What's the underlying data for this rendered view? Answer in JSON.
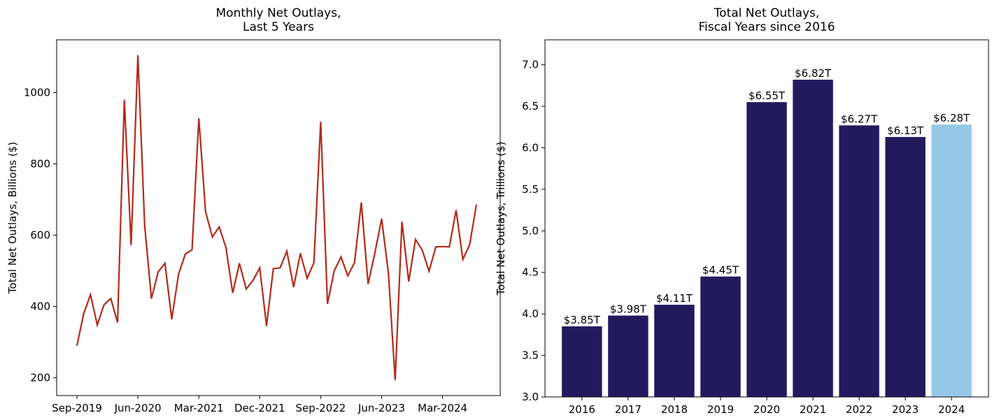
{
  "chart_data": [
    {
      "type": "line",
      "title": [
        "Monthly Net Outlays,",
        "Last 5 Years"
      ],
      "ylabel": "Total Net Outlays, Billions ($)",
      "categories": [
        "Sep-2019",
        null,
        null,
        null,
        null,
        null,
        null,
        null,
        null,
        "Jun-2020",
        null,
        null,
        null,
        null,
        null,
        null,
        null,
        null,
        "Mar-2021",
        null,
        null,
        null,
        null,
        null,
        null,
        null,
        null,
        "Dec-2021",
        null,
        null,
        null,
        null,
        null,
        null,
        null,
        null,
        "Sep-2022",
        null,
        null,
        null,
        null,
        null,
        null,
        null,
        null,
        "Jun-2023",
        null,
        null,
        null,
        null,
        null,
        null,
        null,
        null,
        "Mar-2024",
        null,
        null,
        null,
        null,
        null
      ],
      "series": [
        {
          "name": "Monthly Net Outlays",
          "color": "#b22a1a",
          "values": [
            290,
            380,
            433,
            348,
            405,
            422,
            355,
            980,
            572,
            1105,
            627,
            422,
            497,
            521,
            364,
            490,
            547,
            559,
            928,
            665,
            595,
            623,
            566,
            438,
            521,
            449,
            473,
            508,
            345,
            506,
            508,
            555,
            454,
            549,
            479,
            523,
            918,
            407,
            500,
            539,
            486,
            523,
            692,
            463,
            550,
            646,
            494,
            193,
            638,
            470,
            588,
            558,
            499,
            567,
            568,
            567,
            670,
            532,
            573,
            686
          ]
        }
      ],
      "ylim": [
        150,
        1148
      ],
      "yticks": [
        200,
        400,
        600,
        800,
        1000
      ]
    },
    {
      "type": "bar",
      "title": [
        "Total Net Outlays,",
        "Fiscal Years since 2016"
      ],
      "ylabel": "Total Net Outlays, Trillions ($)",
      "categories": [
        "2016",
        "2017",
        "2018",
        "2019",
        "2020",
        "2021",
        "2022",
        "2023",
        "2024"
      ],
      "values": [
        3.85,
        3.98,
        4.11,
        4.45,
        6.55,
        6.82,
        6.27,
        6.13,
        6.28
      ],
      "value_labels": [
        "$3.85T",
        "$3.98T",
        "$4.11T",
        "$4.45T",
        "$6.55T",
        "$6.82T",
        "$6.27T",
        "$6.13T",
        "$6.28T"
      ],
      "colors": [
        "#231a5e",
        "#231a5e",
        "#231a5e",
        "#231a5e",
        "#231a5e",
        "#231a5e",
        "#231a5e",
        "#231a5e",
        "#97c7e6"
      ],
      "ylim": [
        3.0,
        7.3
      ],
      "yticks": [
        {
          "value": 3,
          "label": "3.0"
        },
        3.5,
        {
          "value": 4,
          "label": "4.0"
        },
        4.5,
        {
          "value": 5,
          "label": "5.0"
        },
        5.5,
        {
          "value": 6,
          "label": "6.0"
        },
        6.5,
        {
          "value": 7,
          "label": "7.0"
        }
      ]
    }
  ]
}
